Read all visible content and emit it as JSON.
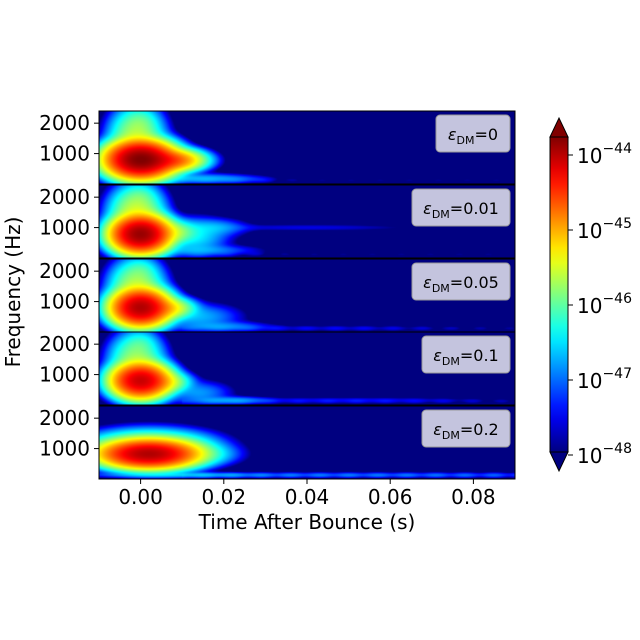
{
  "chart_data": {
    "type": "heatmap",
    "xlabel": "Time After Bounce (s)",
    "ylabel": "Frequency (Hz)",
    "xlim": [
      -0.01,
      0.09
    ],
    "ylim": [
      0,
      2400
    ],
    "x_ticks": [
      0.0,
      0.02,
      0.04,
      0.06,
      0.08
    ],
    "x_tick_labels": [
      "0.00",
      "0.02",
      "0.04",
      "0.06",
      "0.08"
    ],
    "y_ticks": [
      1000,
      2000
    ],
    "y_tick_labels": [
      "1000",
      "2000"
    ],
    "colormap": "jet",
    "colorbar": {
      "scale": "log",
      "range": [
        1e-48,
        1e-44
      ],
      "extend": "both",
      "ticks": [
        {
          "base": "10",
          "exp": "−44",
          "value": 1e-44
        },
        {
          "base": "10",
          "exp": "−45",
          "value": 1e-45
        },
        {
          "base": "10",
          "exp": "−46",
          "value": 1e-46
        },
        {
          "base": "10",
          "exp": "−47",
          "value": 1e-47
        },
        {
          "base": "10",
          "exp": "−48",
          "value": 1e-48
        }
      ]
    },
    "panels": [
      {
        "eps_value": "0",
        "peak_time": 0.0,
        "peak_freq": 800,
        "peak_log_power": -44.0,
        "blobs": [
          {
            "t": 0.0,
            "f": 800,
            "st": 0.0035,
            "sf": 260,
            "lp": -44.0
          },
          {
            "t": 0.007,
            "f": 780,
            "st": 0.0035,
            "sf": 160,
            "lp": -44.8
          },
          {
            "t": -0.001,
            "f": 1550,
            "st": 0.003,
            "sf": 450,
            "lp": -45.8
          },
          {
            "t": 0.0,
            "f": 2050,
            "st": 0.002,
            "sf": 220,
            "lp": -46.6
          },
          {
            "t": 0.014,
            "f": 180,
            "st": 0.007,
            "sf": 90,
            "lp": -46.8
          },
          {
            "t": 0.024,
            "f": 150,
            "st": 0.005,
            "sf": 70,
            "lp": -47.5
          }
        ]
      },
      {
        "eps_value": "0.01",
        "peak_time": 0.0,
        "peak_freq": 800,
        "peak_log_power": -44.1,
        "blobs": [
          {
            "t": 0.0,
            "f": 780,
            "st": 0.003,
            "sf": 260,
            "lp": -44.1
          },
          {
            "t": 0.007,
            "f": 850,
            "st": 0.003,
            "sf": 180,
            "lp": -45.8
          },
          {
            "t": -0.001,
            "f": 1500,
            "st": 0.003,
            "sf": 400,
            "lp": -45.7
          },
          {
            "t": 0.0,
            "f": 2050,
            "st": 0.002,
            "sf": 200,
            "lp": -46.7
          },
          {
            "t": 0.013,
            "f": 700,
            "st": 0.004,
            "sf": 300,
            "lp": -46.6
          },
          {
            "t": 0.018,
            "f": 1000,
            "st": 0.004,
            "sf": 150,
            "lp": -46.9
          },
          {
            "t": 0.04,
            "f": 1000,
            "st": 0.016,
            "sf": 70,
            "lp": -47.6
          },
          {
            "t": 0.015,
            "f": 250,
            "st": 0.007,
            "sf": 100,
            "lp": -47.0
          }
        ]
      },
      {
        "eps_value": "0.05",
        "peak_time": 0.0,
        "peak_freq": 800,
        "peak_log_power": -44.2,
        "blobs": [
          {
            "t": 0.0,
            "f": 800,
            "st": 0.003,
            "sf": 260,
            "lp": -44.2
          },
          {
            "t": 0.006,
            "f": 780,
            "st": 0.003,
            "sf": 160,
            "lp": -45.4
          },
          {
            "t": -0.001,
            "f": 1500,
            "st": 0.003,
            "sf": 400,
            "lp": -45.8
          },
          {
            "t": 0.0,
            "f": 2050,
            "st": 0.002,
            "sf": 200,
            "lp": -46.7
          },
          {
            "t": 0.014,
            "f": 500,
            "st": 0.005,
            "sf": 220,
            "lp": -46.8
          },
          {
            "t": 0.02,
            "f": 180,
            "st": 0.006,
            "sf": 90,
            "lp": -47.0
          },
          {
            "t": 0.045,
            "f": 120,
            "st": 0.02,
            "sf": 60,
            "lp": -47.7
          }
        ]
      },
      {
        "eps_value": "0.1",
        "peak_time": 0.0,
        "peak_freq": 800,
        "peak_log_power": -44.3,
        "blobs": [
          {
            "t": 0.0,
            "f": 800,
            "st": 0.003,
            "sf": 250,
            "lp": -44.3
          },
          {
            "t": 0.005,
            "f": 750,
            "st": 0.003,
            "sf": 160,
            "lp": -45.6
          },
          {
            "t": -0.001,
            "f": 1500,
            "st": 0.003,
            "sf": 400,
            "lp": -45.9
          },
          {
            "t": 0.0,
            "f": 2050,
            "st": 0.002,
            "sf": 200,
            "lp": -46.7
          },
          {
            "t": 0.014,
            "f": 400,
            "st": 0.004,
            "sf": 200,
            "lp": -46.9
          },
          {
            "t": 0.022,
            "f": 150,
            "st": 0.005,
            "sf": 70,
            "lp": -46.9
          },
          {
            "t": 0.05,
            "f": 150,
            "st": 0.02,
            "sf": 60,
            "lp": -47.5
          }
        ]
      },
      {
        "eps_value": "0.2",
        "peak_time": 0.002,
        "peak_freq": 800,
        "peak_log_power": -44.2,
        "blobs": [
          {
            "t": 0.002,
            "f": 820,
            "st": 0.005,
            "sf": 200,
            "lp": -44.2
          },
          {
            "t": 0.002,
            "f": 1050,
            "st": 0.007,
            "sf": 260,
            "lp": -45.7
          },
          {
            "t": 0.012,
            "f": 800,
            "st": 0.005,
            "sf": 180,
            "lp": -46.3
          },
          {
            "t": 0.05,
            "f": 130,
            "st": 0.04,
            "sf": 50,
            "lp": -47.2
          },
          {
            "t": 0.01,
            "f": 130,
            "st": 0.01,
            "sf": 50,
            "lp": -46.9
          }
        ]
      }
    ]
  },
  "legend_epsilon": "ε",
  "legend_sub": "DM",
  "legend_eq": "="
}
